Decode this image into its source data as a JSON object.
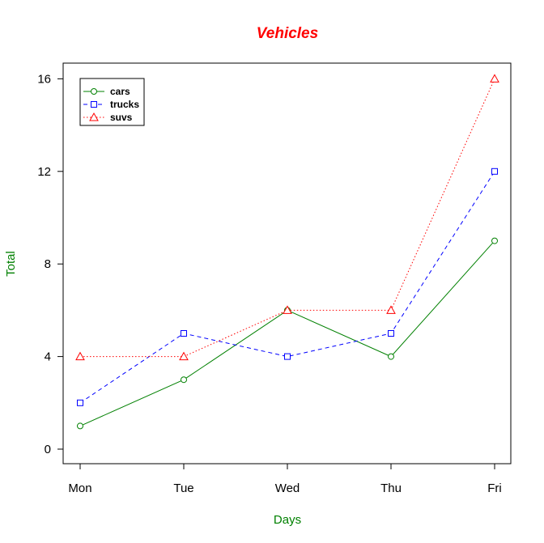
{
  "chart_data": {
    "type": "line",
    "title": "Vehicles",
    "xlabel": "Days",
    "ylabel": "Total",
    "categories": [
      "Mon",
      "Tue",
      "Wed",
      "Thu",
      "Fri"
    ],
    "ylim": [
      0,
      16
    ],
    "yticks": [
      0,
      4,
      8,
      12,
      16
    ],
    "grid": false,
    "legend_position": "top-left",
    "series": [
      {
        "name": "cars",
        "values": [
          1,
          3,
          6,
          4,
          9
        ],
        "color": "#008000",
        "marker": "circle",
        "line_style": "solid"
      },
      {
        "name": "trucks",
        "values": [
          2,
          5,
          4,
          5,
          12
        ],
        "color": "#0000FF",
        "marker": "square",
        "line_style": "dashed"
      },
      {
        "name": "suvs",
        "values": [
          4,
          4,
          6,
          6,
          16
        ],
        "color": "#FF0000",
        "marker": "triangle",
        "line_style": "dotted"
      }
    ]
  },
  "colors": {
    "title": "#FF0000",
    "axis_labels": "#008000",
    "axes": "#000000"
  }
}
